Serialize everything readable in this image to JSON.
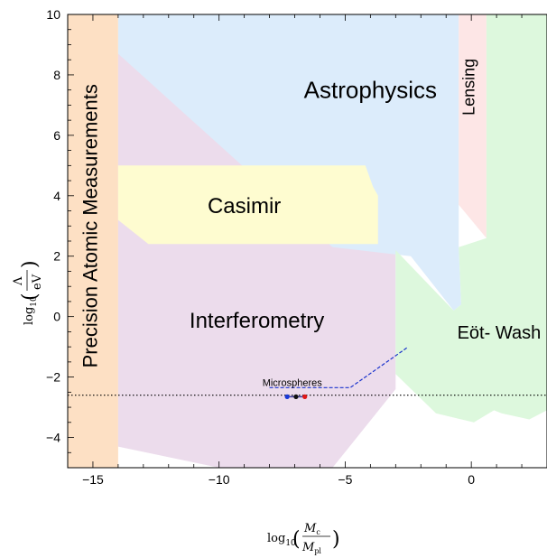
{
  "chart_data": {
    "type": "area",
    "xlim": [
      -16,
      3
    ],
    "ylim": [
      -5,
      10
    ],
    "xticks": [
      -15,
      -10,
      -5,
      0
    ],
    "xtick_labels": [
      "−15",
      "−10",
      "−5",
      "0"
    ],
    "yticks": [
      -4,
      -2,
      0,
      2,
      4,
      6,
      8,
      10
    ],
    "ytick_labels": [
      "−4",
      "−2",
      "0",
      "2",
      "4",
      "6",
      "8",
      "10"
    ],
    "xlabel": {
      "base": "log",
      "sub": "10",
      "num": "M",
      "num_sub": "c",
      "den": "M",
      "den_sub": "pl"
    },
    "ylabel": {
      "base": "log",
      "sub": "10",
      "num": "Λ",
      "den": "eV"
    },
    "regions": [
      {
        "name": "Precision Atomic Measurements",
        "color": "#fde0c4",
        "polygon": [
          [
            -16,
            -5
          ],
          [
            -14,
            -5
          ],
          [
            -14,
            10
          ],
          [
            -16,
            10
          ]
        ]
      },
      {
        "name": "Interferometry",
        "color": "#ecdcec",
        "polygon": [
          [
            -14,
            -4.3
          ],
          [
            -10,
            -5
          ],
          [
            -5.5,
            -5
          ],
          [
            -3,
            -2.4
          ],
          [
            -3,
            2.8
          ],
          [
            -3.7,
            4.8
          ],
          [
            -14,
            8.7
          ]
        ]
      },
      {
        "name": "Astrophysics",
        "color": "#dcecfb",
        "polygon": [
          [
            -14,
            10
          ],
          [
            -0.5,
            10
          ],
          [
            -0.5,
            2.3
          ],
          [
            -0.4,
            0.4
          ],
          [
            -0.7,
            0.2
          ],
          [
            -2.4,
            2.0
          ],
          [
            -5.5,
            2.3
          ],
          [
            -14,
            8.7
          ]
        ]
      },
      {
        "name": "Lensing",
        "color": "#fde6e6",
        "polygon": [
          [
            -0.5,
            10
          ],
          [
            0.6,
            10
          ],
          [
            0.6,
            2.6
          ],
          [
            -0.5,
            3.7
          ]
        ]
      },
      {
        "name": "Eöt- Wash",
        "color": "#ddf8dd",
        "polygon": [
          [
            0.6,
            10
          ],
          [
            3,
            10
          ],
          [
            3,
            -3.1
          ],
          [
            2.3,
            -3.4
          ],
          [
            1.2,
            -3.2
          ],
          [
            0.9,
            -3.1
          ],
          [
            0.1,
            -3.5
          ],
          [
            -1.4,
            -3.2
          ],
          [
            -3,
            -1.9
          ],
          [
            -3,
            2.2
          ],
          [
            -0.7,
            0.2
          ],
          [
            -0.4,
            0.4
          ],
          [
            -0.5,
            2.3
          ],
          [
            0.6,
            2.6
          ]
        ]
      },
      {
        "name": "Casimir",
        "color": "#fefcd0",
        "polygon": [
          [
            -14,
            5
          ],
          [
            -4.2,
            5
          ],
          [
            -3.9,
            4.3
          ],
          [
            -3.7,
            4.0
          ],
          [
            -3.7,
            2.4
          ],
          [
            -12.8,
            2.4
          ],
          [
            -14,
            3.2
          ]
        ]
      }
    ],
    "labels": [
      {
        "text": "Astrophysics",
        "x": -4,
        "y": 7.5,
        "size": 26
      },
      {
        "text": "Casimir",
        "x": -9,
        "y": 3.65,
        "size": 24
      },
      {
        "text": "Interferometry",
        "x": -8.5,
        "y": -0.15,
        "size": 24
      },
      {
        "text": "Eöt- Wash",
        "x": 1.1,
        "y": -0.55,
        "size": 20
      },
      {
        "text": "Lensing",
        "x": -0.1,
        "y": 7.6,
        "size": 18,
        "rotate": -90
      },
      {
        "text": "Precision Atomic Measurements",
        "x": -15.1,
        "y": 3.0,
        "size": 22,
        "rotate": -90
      },
      {
        "text": "Microspheres",
        "x": -7.1,
        "y": -2.2,
        "size": 11
      }
    ],
    "threshold_line": {
      "y": -2.6,
      "style": "dotted",
      "color": "#000000"
    },
    "microspheres_pointer": {
      "color": "#1a33cc",
      "points": [
        [
          -8,
          -2.35
        ],
        [
          -4.8,
          -2.35
        ],
        [
          -2.5,
          -1.0
        ]
      ]
    },
    "points": [
      {
        "x": -7.3,
        "y": -2.65,
        "color": "#1a3ad8"
      },
      {
        "x": -6.95,
        "y": -2.65,
        "color": "#111111"
      },
      {
        "x": -6.6,
        "y": -2.65,
        "color": "#e01818"
      }
    ],
    "grid": false
  }
}
